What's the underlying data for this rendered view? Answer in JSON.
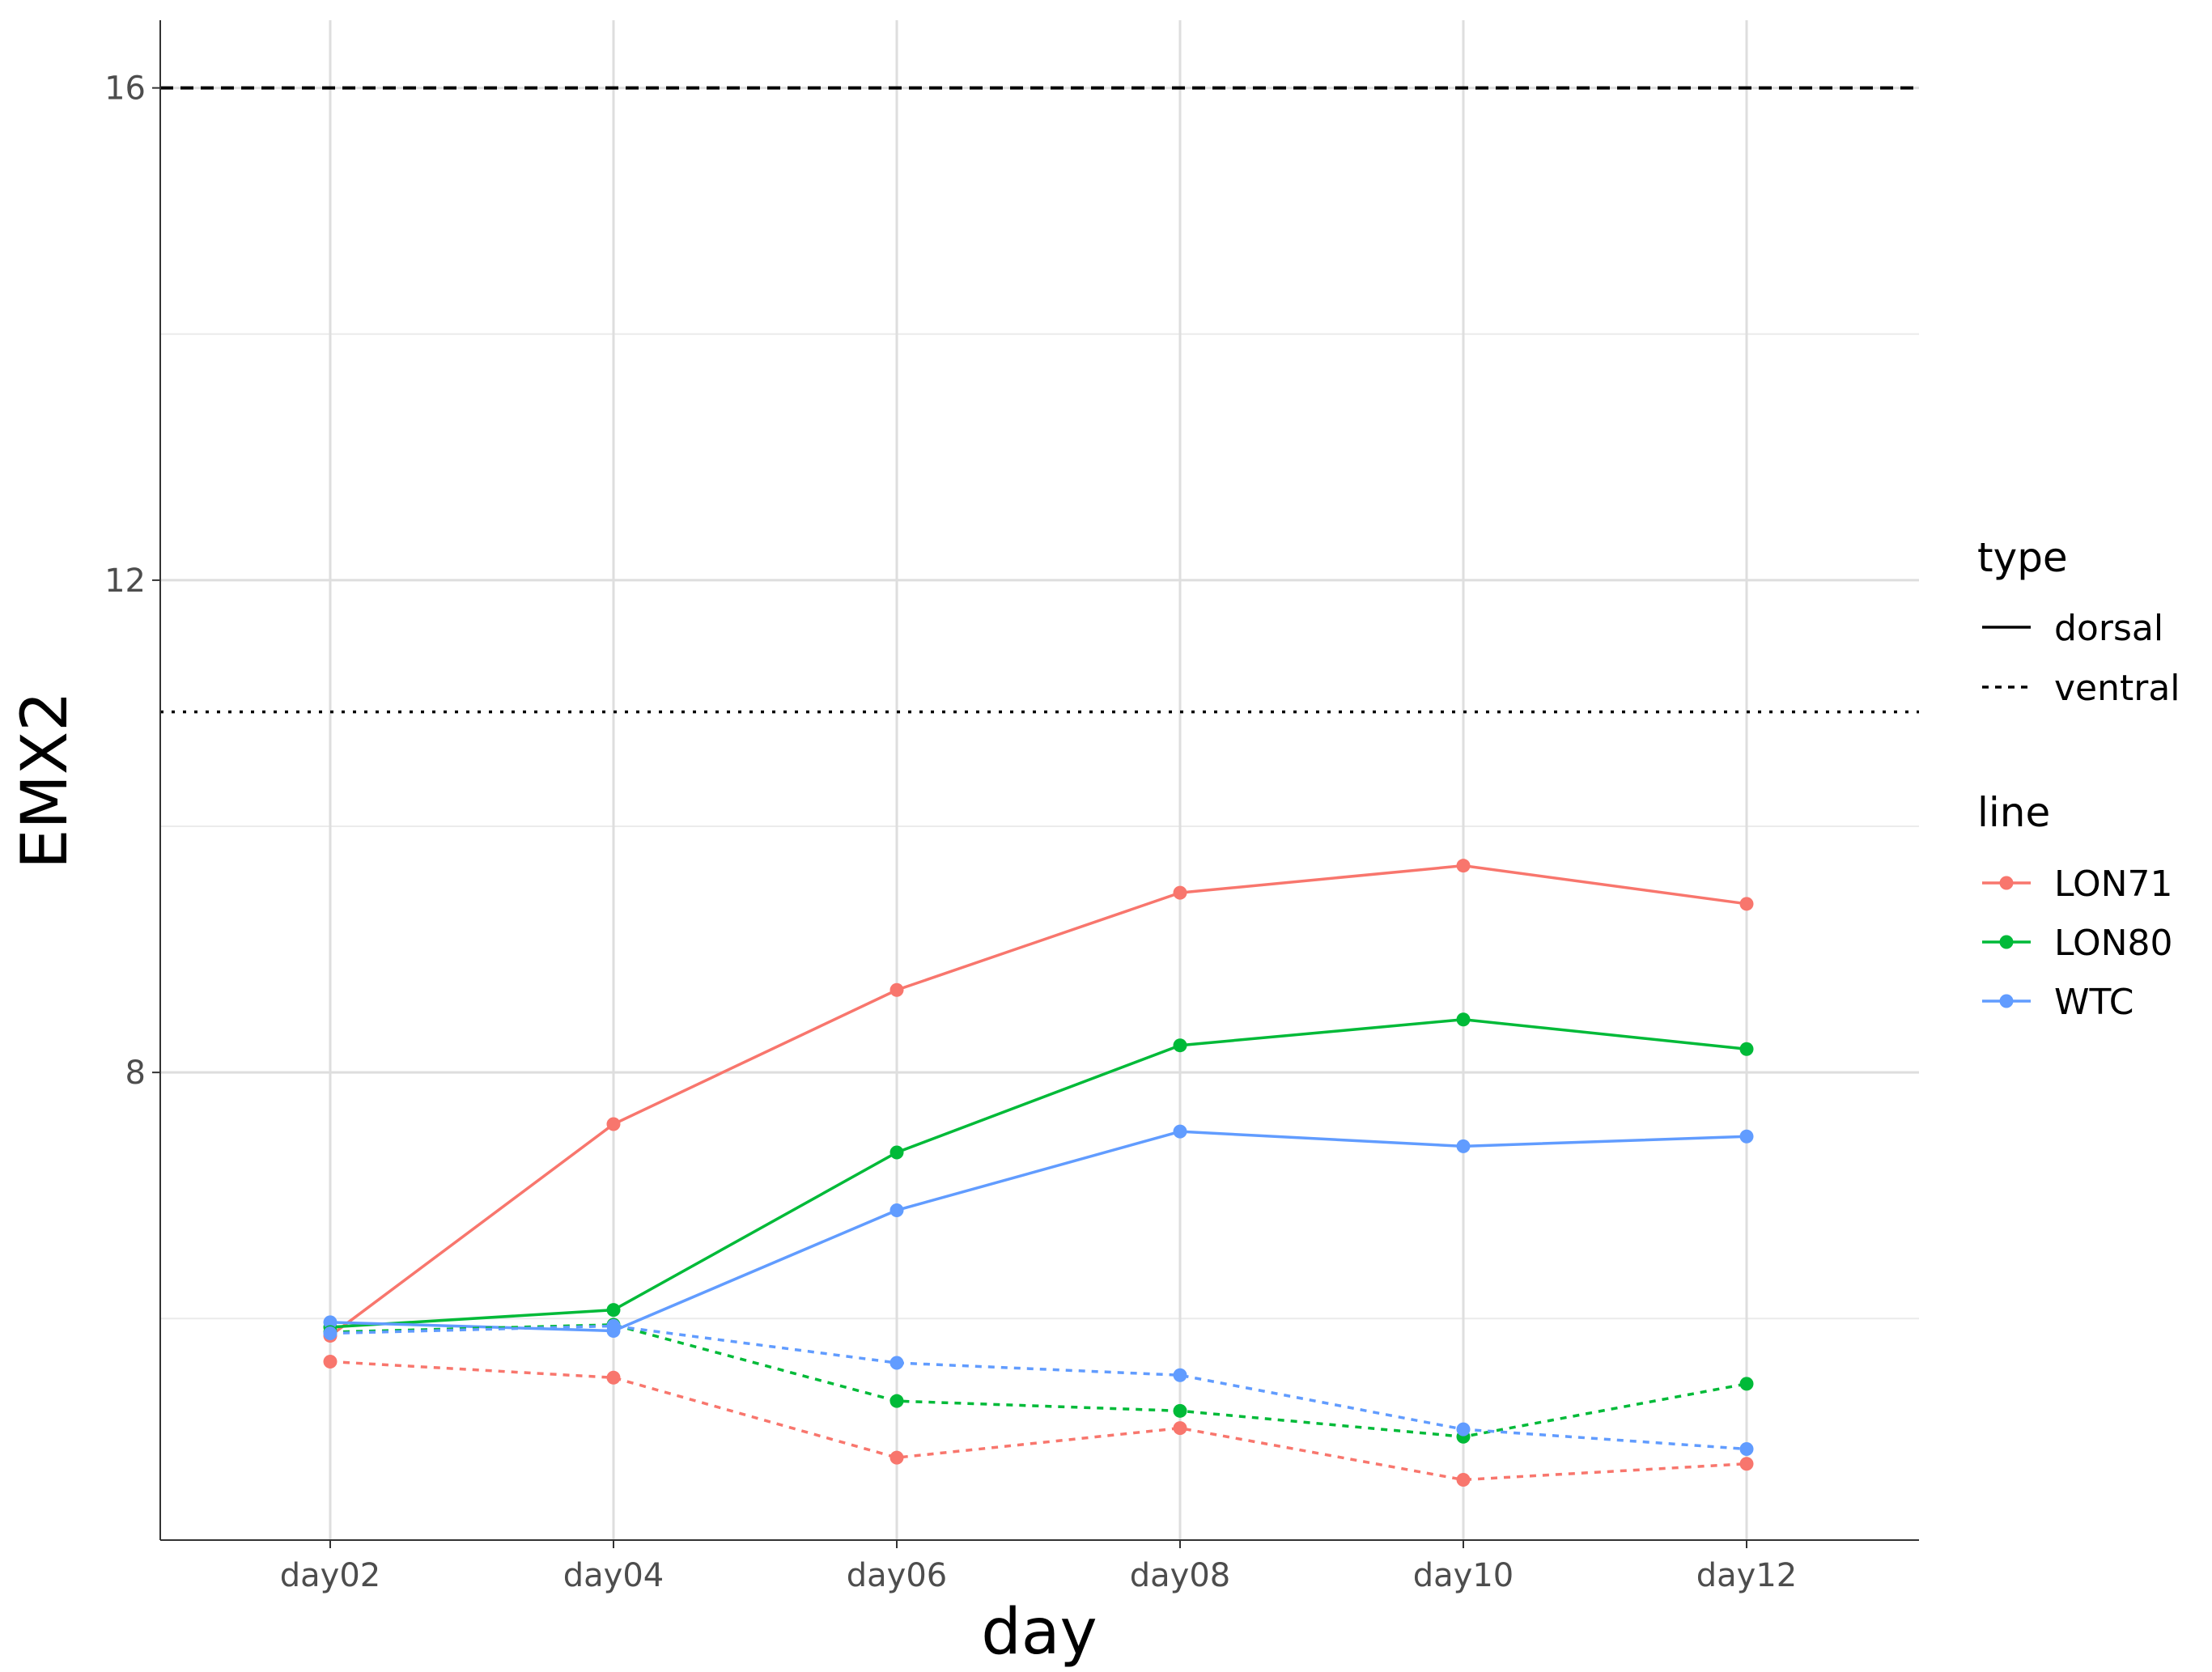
{
  "chart_data": {
    "type": "line",
    "xlabel": "day",
    "ylabel": "EMX2",
    "categories": [
      "day02",
      "day04",
      "day06",
      "day08",
      "day10",
      "day12"
    ],
    "ylim": [
      4.2,
      16.55
    ],
    "yticks": [
      8,
      12,
      16
    ],
    "y_minor_gridlines": [
      6,
      10,
      14
    ],
    "grid": true,
    "legend_position": "right",
    "reference_lines": [
      {
        "value": 16.0,
        "linetype": "dashed"
      },
      {
        "value": 10.93,
        "linetype": "dotted"
      }
    ],
    "legends": {
      "type": {
        "title": "type",
        "items": [
          {
            "label": "dorsal",
            "linetype": "solid"
          },
          {
            "label": "ventral",
            "linetype": "dotted"
          }
        ]
      },
      "line": {
        "title": "line",
        "items": [
          {
            "label": "LON71",
            "color": "#F8766D"
          },
          {
            "label": "LON80",
            "color": "#00BA38"
          },
          {
            "label": "WTC",
            "color": "#619CFF"
          }
        ]
      }
    },
    "series": [
      {
        "line": "LON71",
        "type": "dorsal",
        "color": "#F8766D",
        "values": [
          5.86,
          7.58,
          8.67,
          9.46,
          9.68,
          9.37
        ]
      },
      {
        "line": "LON80",
        "type": "dorsal",
        "color": "#00BA38",
        "values": [
          5.93,
          6.07,
          7.35,
          8.22,
          8.43,
          8.19
        ]
      },
      {
        "line": "WTC",
        "type": "dorsal",
        "color": "#619CFF",
        "values": [
          5.97,
          5.9,
          6.88,
          7.52,
          7.4,
          7.48
        ]
      },
      {
        "line": "LON71",
        "type": "ventral",
        "color": "#F8766D",
        "values": [
          5.65,
          5.52,
          4.87,
          5.11,
          4.69,
          4.82
        ]
      },
      {
        "line": "LON80",
        "type": "ventral",
        "color": "#00BA38",
        "values": [
          5.89,
          5.95,
          5.33,
          5.25,
          5.04,
          5.47
        ]
      },
      {
        "line": "WTC",
        "type": "ventral",
        "color": "#619CFF",
        "values": [
          5.88,
          5.94,
          5.64,
          5.54,
          5.1,
          4.94
        ]
      }
    ]
  }
}
